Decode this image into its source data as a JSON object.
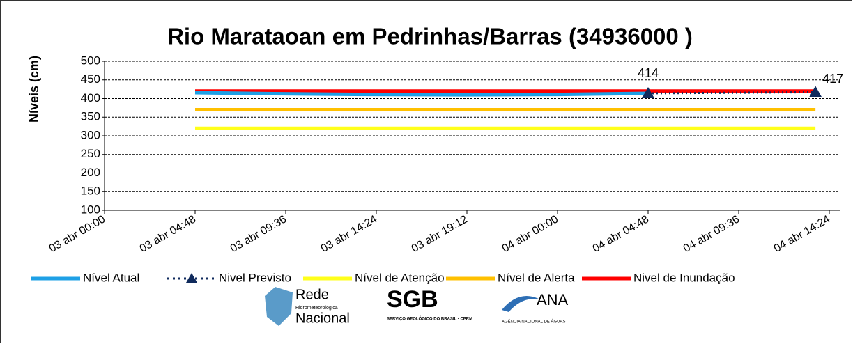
{
  "chart_data": {
    "type": "line",
    "title": "Rio Marataoan em Pedrinhas/Barras (34936000 )",
    "y_label": "Níveis  (cm)",
    "xlim": [
      "03 abr 00:00",
      "04 abr 14:24"
    ],
    "xticks": [
      "03 abr 00:00",
      "03 abr 04:48",
      "03 abr 09:36",
      "03 abr 14:24",
      "03 abr 19:12",
      "04 abr 00:00",
      "04 abr 04:48",
      "04 abr 09:36",
      "04 abr 14:24"
    ],
    "ylim": [
      100,
      500
    ],
    "yticks": [
      100,
      150,
      200,
      250,
      300,
      350,
      400,
      450,
      500
    ],
    "grid": true,
    "legend": "bottom",
    "series": [
      {
        "name": "Nível Atual",
        "color": "#1ea0e6",
        "style": "solid",
        "x": [
          "03 abr 04:48",
          "03 abr 09:00",
          "03 abr 14:00",
          "03 abr 19:00",
          "04 abr 00:00",
          "04 abr 04:48"
        ],
        "values": [
          416,
          413,
          411,
          410,
          411,
          414
        ]
      },
      {
        "name": "Nivel Previsto",
        "color": "#0f2a5c",
        "style": "dotted",
        "marker": "triangle",
        "x": [
          "04 abr 04:48",
          "04 abr 13:40"
        ],
        "values": [
          414,
          417
        ],
        "value_labels": [
          "414",
          "417"
        ]
      },
      {
        "name": "Nível de Atenção",
        "color": "#ffff1a",
        "style": "solid",
        "x": [
          "03 abr 04:48",
          "04 abr 13:40"
        ],
        "values": [
          320,
          320
        ]
      },
      {
        "name": "Nível de Alerta",
        "color": "#ffc000",
        "style": "solid",
        "x": [
          "03 abr 04:48",
          "04 abr 13:40"
        ],
        "values": [
          370,
          370
        ]
      },
      {
        "name": "Nivel de Inundação",
        "color": "#ff0000",
        "style": "solid",
        "x": [
          "03 abr 04:48",
          "04 abr 13:40"
        ],
        "values": [
          420,
          420
        ]
      }
    ]
  },
  "logos": [
    {
      "name": "Rede",
      "sub": "Hidrometeorológica",
      "name2": "Nacional"
    },
    {
      "name": "SGB",
      "sub": "SERVIÇO GEOLÓGICO DO BRASIL - CPRM"
    },
    {
      "name": "ANA",
      "sub": "AGÊNCIA NACIONAL DE ÁGUAS"
    }
  ]
}
